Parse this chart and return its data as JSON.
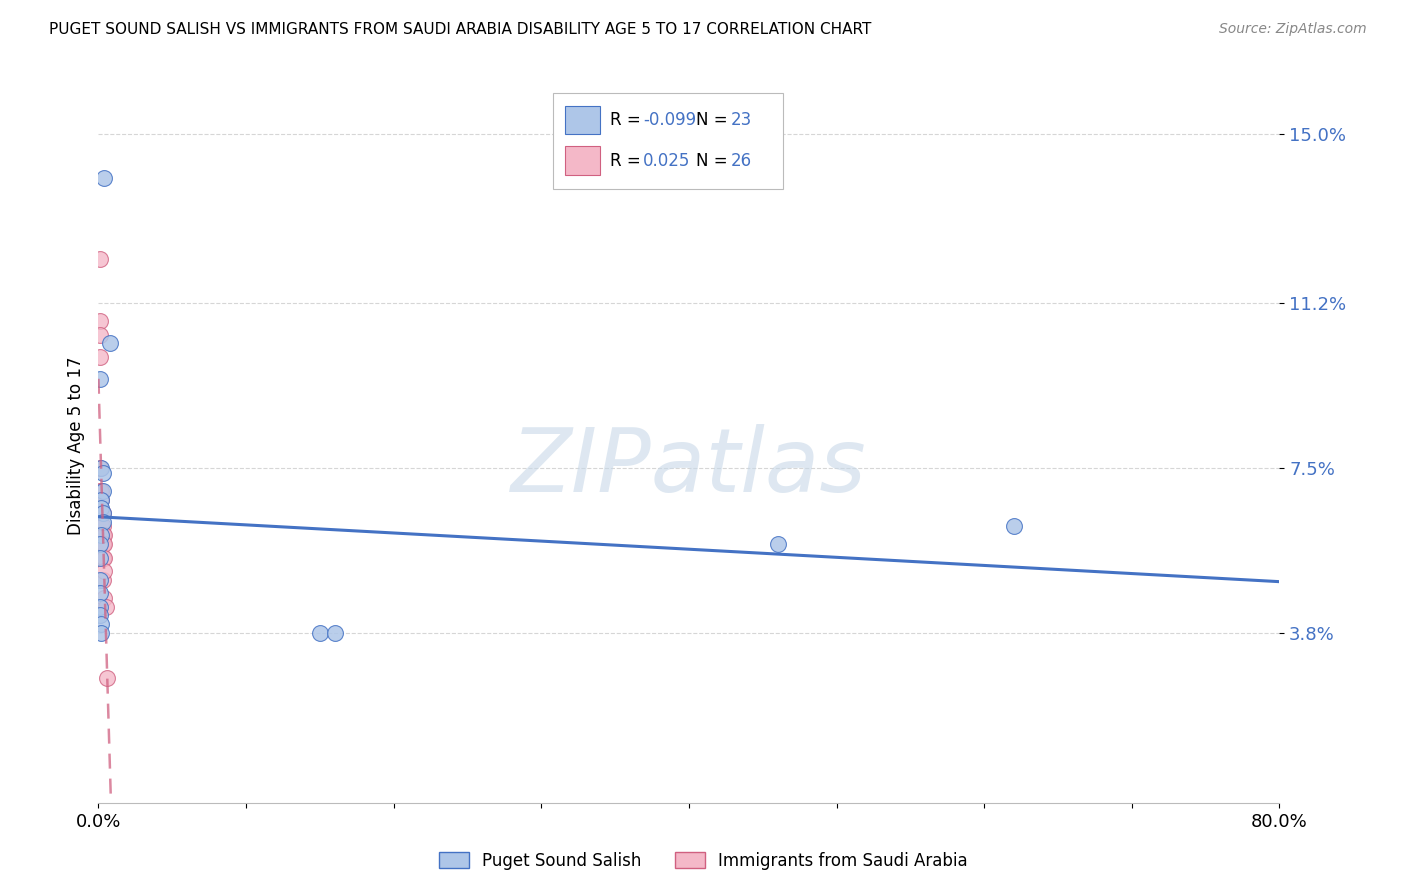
{
  "title": "PUGET SOUND SALISH VS IMMIGRANTS FROM SAUDI ARABIA DISABILITY AGE 5 TO 17 CORRELATION CHART",
  "source": "Source: ZipAtlas.com",
  "ylabel": "Disability Age 5 to 17",
  "xlim": [
    0.0,
    0.8
  ],
  "ylim": [
    0.0,
    0.16
  ],
  "yticks": [
    0.038,
    0.075,
    0.112,
    0.15
  ],
  "ytick_labels": [
    "3.8%",
    "7.5%",
    "11.2%",
    "15.0%"
  ],
  "xtick_positions": [
    0.0,
    0.1,
    0.2,
    0.3,
    0.4,
    0.5,
    0.6,
    0.7,
    0.8
  ],
  "xtick_labels": [
    "0.0%",
    "",
    "",
    "",
    "",
    "",
    "",
    "",
    "80.0%"
  ],
  "blue_series": {
    "label": "Puget Sound Salish",
    "R": "-0.099",
    "N": "23",
    "color": "#aec6e8",
    "edge_color": "#4472c4",
    "line_color": "#4472c4",
    "x": [
      0.004,
      0.008,
      0.001,
      0.002,
      0.003,
      0.003,
      0.002,
      0.002,
      0.003,
      0.003,
      0.002,
      0.001,
      0.001,
      0.001,
      0.001,
      0.001,
      0.001,
      0.002,
      0.002,
      0.46,
      0.62,
      0.15,
      0.16
    ],
    "y": [
      0.14,
      0.103,
      0.095,
      0.075,
      0.074,
      0.07,
      0.068,
      0.066,
      0.065,
      0.063,
      0.06,
      0.058,
      0.055,
      0.05,
      0.047,
      0.044,
      0.042,
      0.04,
      0.038,
      0.058,
      0.062,
      0.038,
      0.038
    ]
  },
  "pink_series": {
    "label": "Immigrants from Saudi Arabia",
    "R": "0.025",
    "N": "26",
    "color": "#f4b8c8",
    "edge_color": "#d06080",
    "line_color": "#d06080",
    "x": [
      0.001,
      0.001,
      0.001,
      0.001,
      0.001,
      0.001,
      0.001,
      0.001,
      0.002,
      0.002,
      0.002,
      0.002,
      0.002,
      0.003,
      0.003,
      0.003,
      0.003,
      0.003,
      0.003,
      0.004,
      0.004,
      0.004,
      0.004,
      0.004,
      0.005,
      0.006
    ],
    "y": [
      0.122,
      0.108,
      0.105,
      0.1,
      0.075,
      0.07,
      0.066,
      0.06,
      0.07,
      0.068,
      0.065,
      0.062,
      0.058,
      0.065,
      0.062,
      0.06,
      0.058,
      0.055,
      0.05,
      0.06,
      0.058,
      0.055,
      0.052,
      0.046,
      0.044,
      0.028
    ]
  },
  "watermark_text": "ZIPatlas",
  "watermark_color": "#c8d8e8",
  "grid_color": "#cccccc",
  "bg_color": "#ffffff",
  "title_fontsize": 11,
  "source_fontsize": 10,
  "tick_fontsize": 13,
  "ylabel_fontsize": 12
}
